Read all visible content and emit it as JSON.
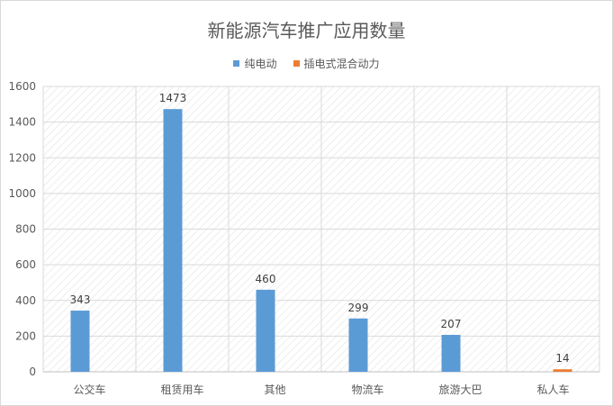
{
  "chart_data": {
    "type": "bar",
    "title": "新能源汽车推广应用数量",
    "categories": [
      "公交车",
      "租赁用车",
      "其他",
      "物流车",
      "旅游大巴",
      "私人车"
    ],
    "series": [
      {
        "name": "纯电动",
        "color": "#5b9bd5",
        "values": [
          343,
          1473,
          460,
          299,
          207,
          null
        ]
      },
      {
        "name": "插电式混合动力",
        "color": "#ed7d31",
        "values": [
          null,
          null,
          null,
          null,
          null,
          14
        ]
      }
    ],
    "ylim": [
      0,
      1600
    ],
    "yticks": [
      0,
      200,
      400,
      600,
      800,
      1000,
      1200,
      1400,
      1600
    ],
    "grid": true,
    "legend": "top"
  }
}
